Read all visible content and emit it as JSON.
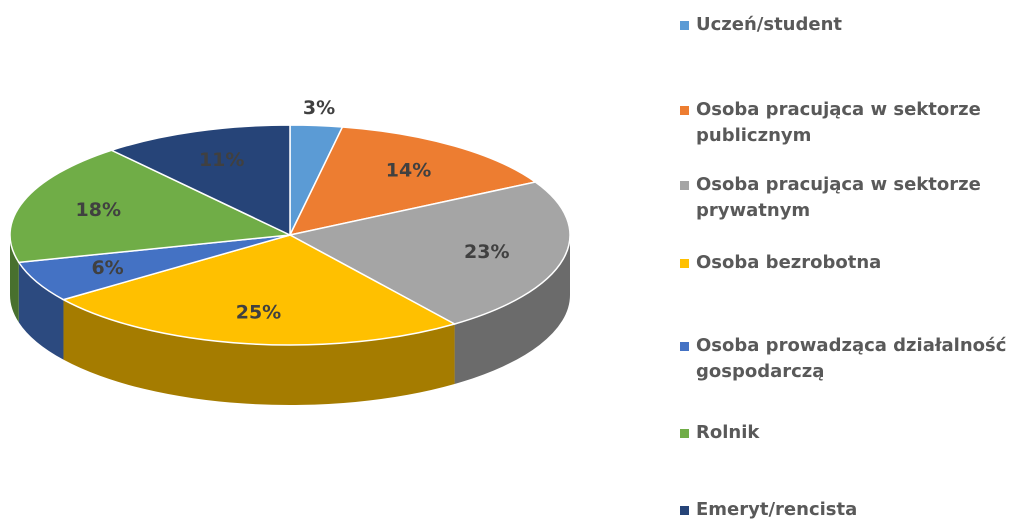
{
  "chart_data": {
    "type": "pie",
    "categories": [
      "Uczeń/student",
      "Osoba pracująca w sektorze publicznym",
      "Osoba pracująca w sektorze prywatnym",
      "Osoba bezrobotna",
      "Osoba prowadząca działalność gospodarczą",
      "Rolnik",
      "Emeryt/rencista"
    ],
    "values": [
      3,
      14,
      23,
      25,
      6,
      18,
      11
    ],
    "value_labels": [
      "3%",
      "14%",
      "23%",
      "25%",
      "6%",
      "18%",
      "11%"
    ],
    "colors": [
      "#5b9bd5",
      "#ed7d31",
      "#a5a5a5",
      "#ffc000",
      "#4472c4",
      "#70ad47",
      "#264478"
    ],
    "legend": "right"
  }
}
